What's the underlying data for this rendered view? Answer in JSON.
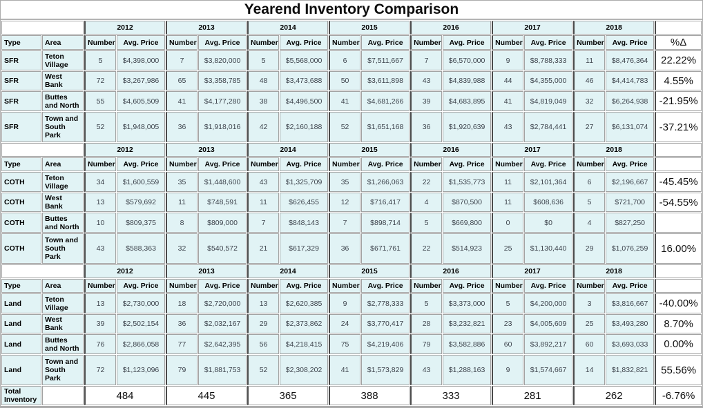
{
  "title": "Yearend Inventory Comparison",
  "colors": {
    "cell_fill": "#e1f3f5",
    "grid_border": "#a3a3a3",
    "group_border": "#4a4a4a",
    "data_text": "#3d434c",
    "header_text": "#000000"
  },
  "chart_data": {
    "type": "table",
    "title": "Yearend Inventory Comparison",
    "years": [
      "2012",
      "2013",
      "2014",
      "2015",
      "2016",
      "2017",
      "2018"
    ],
    "column_headers": {
      "type": "Type",
      "area": "Area",
      "number": "Number",
      "avg_price": "Avg. Price",
      "pct_change": "%Δ"
    },
    "sections": [
      {
        "rows": [
          {
            "type": "SFR",
            "area": "Teton Village",
            "data": [
              {
                "number": "5",
                "avg_price": "$4,398,000"
              },
              {
                "number": "7",
                "avg_price": "$3,820,000"
              },
              {
                "number": "5",
                "avg_price": "$5,568,000"
              },
              {
                "number": "6",
                "avg_price": "$7,511,667"
              },
              {
                "number": "7",
                "avg_price": "$6,570,000"
              },
              {
                "number": "9",
                "avg_price": "$8,788,333"
              },
              {
                "number": "11",
                "avg_price": "$8,476,364"
              }
            ],
            "pct_change": "22.22%"
          },
          {
            "type": "SFR",
            "area": "West Bank",
            "data": [
              {
                "number": "72",
                "avg_price": "$3,267,986"
              },
              {
                "number": "65",
                "avg_price": "$3,358,785"
              },
              {
                "number": "48",
                "avg_price": "$3,473,688"
              },
              {
                "number": "50",
                "avg_price": "$3,611,898"
              },
              {
                "number": "43",
                "avg_price": "$4,839,988"
              },
              {
                "number": "44",
                "avg_price": "$4,355,000"
              },
              {
                "number": "46",
                "avg_price": "$4,414,783"
              }
            ],
            "pct_change": "4.55%"
          },
          {
            "type": "SFR",
            "area": "Buttes and North",
            "data": [
              {
                "number": "55",
                "avg_price": "$4,605,509"
              },
              {
                "number": "41",
                "avg_price": "$4,177,280"
              },
              {
                "number": "38",
                "avg_price": "$4,496,500"
              },
              {
                "number": "41",
                "avg_price": "$4,681,266"
              },
              {
                "number": "39",
                "avg_price": "$4,683,895"
              },
              {
                "number": "41",
                "avg_price": "$4,819,049"
              },
              {
                "number": "32",
                "avg_price": "$6,264,938"
              }
            ],
            "pct_change": "-21.95%"
          },
          {
            "type": "SFR",
            "area": "Town and South Park",
            "data": [
              {
                "number": "52",
                "avg_price": "$1,948,005"
              },
              {
                "number": "36",
                "avg_price": "$1,918,016"
              },
              {
                "number": "42",
                "avg_price": "$2,160,188"
              },
              {
                "number": "52",
                "avg_price": "$1,651,168"
              },
              {
                "number": "36",
                "avg_price": "$1,920,639"
              },
              {
                "number": "43",
                "avg_price": "$2,784,441"
              },
              {
                "number": "27",
                "avg_price": "$6,131,074"
              }
            ],
            "pct_change": "-37.21%"
          }
        ]
      },
      {
        "rows": [
          {
            "type": "COTH",
            "area": "Teton Village",
            "data": [
              {
                "number": "34",
                "avg_price": "$1,600,559"
              },
              {
                "number": "35",
                "avg_price": "$1,448,600"
              },
              {
                "number": "43",
                "avg_price": "$1,325,709"
              },
              {
                "number": "35",
                "avg_price": "$1,266,063"
              },
              {
                "number": "22",
                "avg_price": "$1,535,773"
              },
              {
                "number": "11",
                "avg_price": "$2,101,364"
              },
              {
                "number": "6",
                "avg_price": "$2,196,667"
              }
            ],
            "pct_change": "-45.45%"
          },
          {
            "type": "COTH",
            "area": "West Bank",
            "data": [
              {
                "number": "13",
                "avg_price": "$579,692"
              },
              {
                "number": "11",
                "avg_price": "$748,591"
              },
              {
                "number": "11",
                "avg_price": "$626,455"
              },
              {
                "number": "12",
                "avg_price": "$716,417"
              },
              {
                "number": "4",
                "avg_price": "$870,500"
              },
              {
                "number": "11",
                "avg_price": "$608,636"
              },
              {
                "number": "5",
                "avg_price": "$721,700"
              }
            ],
            "pct_change": "-54.55%"
          },
          {
            "type": "COTH",
            "area": "Buttes and North",
            "data": [
              {
                "number": "10",
                "avg_price": "$809,375"
              },
              {
                "number": "8",
                "avg_price": "$809,000"
              },
              {
                "number": "7",
                "avg_price": "$848,143"
              },
              {
                "number": "7",
                "avg_price": "$898,714"
              },
              {
                "number": "5",
                "avg_price": "$669,800"
              },
              {
                "number": "0",
                "avg_price": "$0"
              },
              {
                "number": "4",
                "avg_price": "$827,250"
              }
            ],
            "pct_change": ""
          },
          {
            "type": "COTH",
            "area": "Town and South Park",
            "data": [
              {
                "number": "43",
                "avg_price": "$588,363"
              },
              {
                "number": "32",
                "avg_price": "$540,572"
              },
              {
                "number": "21",
                "avg_price": "$617,329"
              },
              {
                "number": "36",
                "avg_price": "$671,761"
              },
              {
                "number": "22",
                "avg_price": "$514,923"
              },
              {
                "number": "25",
                "avg_price": "$1,130,440"
              },
              {
                "number": "29",
                "avg_price": "$1,076,259"
              }
            ],
            "pct_change": "16.00%"
          }
        ]
      },
      {
        "rows": [
          {
            "type": "Land",
            "area": "Teton Village",
            "data": [
              {
                "number": "13",
                "avg_price": "$2,730,000"
              },
              {
                "number": "18",
                "avg_price": "$2,720,000"
              },
              {
                "number": "13",
                "avg_price": "$2,620,385"
              },
              {
                "number": "9",
                "avg_price": "$2,778,333"
              },
              {
                "number": "5",
                "avg_price": "$3,373,000"
              },
              {
                "number": "5",
                "avg_price": "$4,200,000"
              },
              {
                "number": "3",
                "avg_price": "$3,816,667"
              }
            ],
            "pct_change": "-40.00%"
          },
          {
            "type": "Land",
            "area": "West Bank",
            "data": [
              {
                "number": "39",
                "avg_price": "$2,502,154"
              },
              {
                "number": "36",
                "avg_price": "$2,032,167"
              },
              {
                "number": "29",
                "avg_price": "$2,373,862"
              },
              {
                "number": "24",
                "avg_price": "$3,770,417"
              },
              {
                "number": "28",
                "avg_price": "$3,232,821"
              },
              {
                "number": "23",
                "avg_price": "$4,005,609"
              },
              {
                "number": "25",
                "avg_price": "$3,493,280"
              }
            ],
            "pct_change": "8.70%"
          },
          {
            "type": "Land",
            "area": "Buttes and North",
            "data": [
              {
                "number": "76",
                "avg_price": "$2,866,058"
              },
              {
                "number": "77",
                "avg_price": "$2,642,395"
              },
              {
                "number": "56",
                "avg_price": "$4,218,415"
              },
              {
                "number": "75",
                "avg_price": "$4,219,406"
              },
              {
                "number": "79",
                "avg_price": "$3,582,886"
              },
              {
                "number": "60",
                "avg_price": "$3,892,217"
              },
              {
                "number": "60",
                "avg_price": "$3,693,033"
              }
            ],
            "pct_change": "0.00%"
          },
          {
            "type": "Land",
            "area": "Town and South Park",
            "data": [
              {
                "number": "72",
                "avg_price": "$1,123,096"
              },
              {
                "number": "79",
                "avg_price": "$1,881,753"
              },
              {
                "number": "52",
                "avg_price": "$2,308,202"
              },
              {
                "number": "41",
                "avg_price": "$1,573,829"
              },
              {
                "number": "43",
                "avg_price": "$1,288,163"
              },
              {
                "number": "9",
                "avg_price": "$1,574,667"
              },
              {
                "number": "14",
                "avg_price": "$1,832,821"
              }
            ],
            "pct_change": "55.56%"
          }
        ]
      }
    ],
    "total_row": {
      "label": "Total Inventory",
      "values": [
        "484",
        "445",
        "365",
        "388",
        "333",
        "281",
        "262"
      ],
      "pct_change": "-6.76%"
    }
  }
}
